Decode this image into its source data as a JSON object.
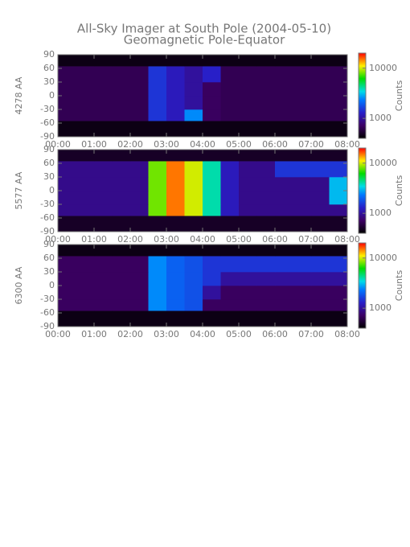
{
  "title": "All-Sky Imager at South Pole (2004-05-10)",
  "subtitle": "Geomagnetic Pole-Equator",
  "chart_data": [
    {
      "type": "heatmap",
      "ylabel": "4278 AA",
      "xlim": [
        0,
        8
      ],
      "xticks": [
        {
          "value": 0,
          "label": "00:00"
        },
        {
          "value": 1,
          "label": "01:00"
        },
        {
          "value": 2,
          "label": "02:00"
        },
        {
          "value": 3,
          "label": "03:00"
        },
        {
          "value": 4,
          "label": "04:00"
        },
        {
          "value": 5,
          "label": "05:00"
        },
        {
          "value": 6,
          "label": "06:00"
        },
        {
          "value": 7,
          "label": "07:00"
        },
        {
          "value": 8,
          "label": "08:00"
        }
      ],
      "ylim": [
        -90,
        90
      ],
      "yticks": [
        -90,
        -60,
        -30,
        0,
        30,
        60,
        90
      ],
      "xbins": [
        0,
        0.5,
        1,
        1.5,
        2,
        2.5,
        3,
        3.5,
        4,
        4.5,
        5,
        5.5,
        6,
        6.5,
        7,
        7.5,
        8
      ],
      "ybins": [
        -90,
        -55,
        -30,
        0,
        30,
        65,
        90
      ],
      "z": [
        [
          450,
          450,
          450,
          450,
          450,
          450,
          450,
          450,
          450,
          450,
          450,
          450,
          450,
          450,
          450,
          450
        ],
        [
          650,
          650,
          650,
          650,
          650,
          1500,
          1200,
          2500,
          700,
          650,
          650,
          650,
          650,
          650,
          650,
          650
        ],
        [
          650,
          650,
          650,
          650,
          650,
          1500,
          1200,
          1000,
          700,
          650,
          650,
          650,
          650,
          650,
          650,
          650
        ],
        [
          650,
          650,
          650,
          650,
          650,
          1500,
          1200,
          1000,
          700,
          650,
          650,
          650,
          650,
          650,
          650,
          650
        ],
        [
          650,
          650,
          650,
          650,
          650,
          1500,
          1200,
          1000,
          1300,
          650,
          650,
          650,
          650,
          650,
          650,
          650
        ],
        [
          450,
          450,
          450,
          450,
          450,
          450,
          450,
          450,
          450,
          450,
          450,
          450,
          450,
          450,
          450,
          450
        ]
      ],
      "colorbar": {
        "label": "Counts",
        "lim": [
          400,
          20000
        ],
        "log": true,
        "ticks": [
          1000,
          10000
        ]
      }
    },
    {
      "type": "heatmap",
      "ylabel": "5577 AA",
      "xlim": [
        0,
        8
      ],
      "xticks": [
        {
          "value": 0,
          "label": "00:00"
        },
        {
          "value": 1,
          "label": "01:00"
        },
        {
          "value": 2,
          "label": "02:00"
        },
        {
          "value": 3,
          "label": "03:00"
        },
        {
          "value": 4,
          "label": "04:00"
        },
        {
          "value": 5,
          "label": "05:00"
        },
        {
          "value": 6,
          "label": "06:00"
        },
        {
          "value": 7,
          "label": "07:00"
        },
        {
          "value": 8,
          "label": "08:00"
        }
      ],
      "ylim": [
        -90,
        90
      ],
      "yticks": [
        -90,
        -60,
        -30,
        0,
        30,
        60,
        90
      ],
      "xbins": [
        0,
        0.5,
        1,
        1.5,
        2,
        2.5,
        3,
        3.5,
        4,
        4.5,
        5,
        5.5,
        6,
        6.5,
        7,
        7.5,
        8
      ],
      "ybins": [
        -90,
        -55,
        -30,
        0,
        30,
        65,
        90
      ],
      "z": [
        [
          500,
          500,
          500,
          500,
          500,
          500,
          500,
          500,
          500,
          500,
          500,
          500,
          500,
          500,
          500,
          500
        ],
        [
          900,
          900,
          900,
          900,
          900,
          8000,
          15000,
          10000,
          4000,
          1200,
          900,
          900,
          900,
          900,
          900,
          900
        ],
        [
          900,
          900,
          900,
          900,
          900,
          8000,
          15000,
          10000,
          4000,
          1200,
          900,
          900,
          900,
          900,
          900,
          3000
        ],
        [
          900,
          900,
          900,
          900,
          900,
          8000,
          15000,
          10000,
          4000,
          1200,
          900,
          900,
          900,
          900,
          900,
          3000
        ],
        [
          900,
          900,
          900,
          900,
          900,
          8000,
          15000,
          10000,
          4000,
          1200,
          900,
          900,
          1500,
          1500,
          1500,
          1500
        ],
        [
          500,
          500,
          500,
          500,
          500,
          500,
          500,
          500,
          500,
          500,
          500,
          500,
          500,
          500,
          500,
          500
        ]
      ],
      "colorbar": {
        "label": "Counts",
        "lim": [
          400,
          20000
        ],
        "log": true,
        "ticks": [
          1000,
          10000
        ]
      }
    },
    {
      "type": "heatmap",
      "ylabel": "6300 AA",
      "xlim": [
        0,
        8
      ],
      "xticks": [
        {
          "value": 0,
          "label": "00:00"
        },
        {
          "value": 1,
          "label": "01:00"
        },
        {
          "value": 2,
          "label": "02:00"
        },
        {
          "value": 3,
          "label": "03:00"
        },
        {
          "value": 4,
          "label": "04:00"
        },
        {
          "value": 5,
          "label": "05:00"
        },
        {
          "value": 6,
          "label": "06:00"
        },
        {
          "value": 7,
          "label": "07:00"
        },
        {
          "value": 8,
          "label": "08:00"
        }
      ],
      "ylim": [
        -90,
        90
      ],
      "yticks": [
        -90,
        -60,
        -30,
        0,
        30,
        60,
        90
      ],
      "xbins": [
        0,
        0.5,
        1,
        1.5,
        2,
        2.5,
        3,
        3.5,
        4,
        4.5,
        5,
        5.5,
        6,
        6.5,
        7,
        7.5,
        8
      ],
      "ybins": [
        -90,
        -55,
        -30,
        0,
        30,
        65,
        90
      ],
      "z": [
        [
          450,
          450,
          450,
          450,
          450,
          450,
          450,
          450,
          450,
          450,
          450,
          450,
          450,
          450,
          450,
          450
        ],
        [
          700,
          700,
          700,
          700,
          700,
          2500,
          2000,
          1800,
          700,
          700,
          700,
          700,
          700,
          700,
          700,
          700
        ],
        [
          700,
          700,
          700,
          700,
          700,
          2500,
          2000,
          1800,
          1000,
          700,
          700,
          700,
          700,
          700,
          700,
          700
        ],
        [
          700,
          700,
          700,
          700,
          700,
          2500,
          2000,
          1800,
          1500,
          1000,
          1000,
          1000,
          1000,
          1000,
          1000,
          1000
        ],
        [
          700,
          700,
          700,
          700,
          700,
          2500,
          2000,
          1800,
          1500,
          1500,
          1500,
          1500,
          1500,
          1500,
          1500,
          1500
        ],
        [
          450,
          450,
          450,
          450,
          450,
          450,
          450,
          450,
          450,
          450,
          450,
          450,
          450,
          450,
          450,
          450
        ]
      ],
      "colorbar": {
        "label": "Counts",
        "lim": [
          400,
          20000
        ],
        "log": true,
        "ticks": [
          1000,
          10000
        ]
      }
    }
  ]
}
